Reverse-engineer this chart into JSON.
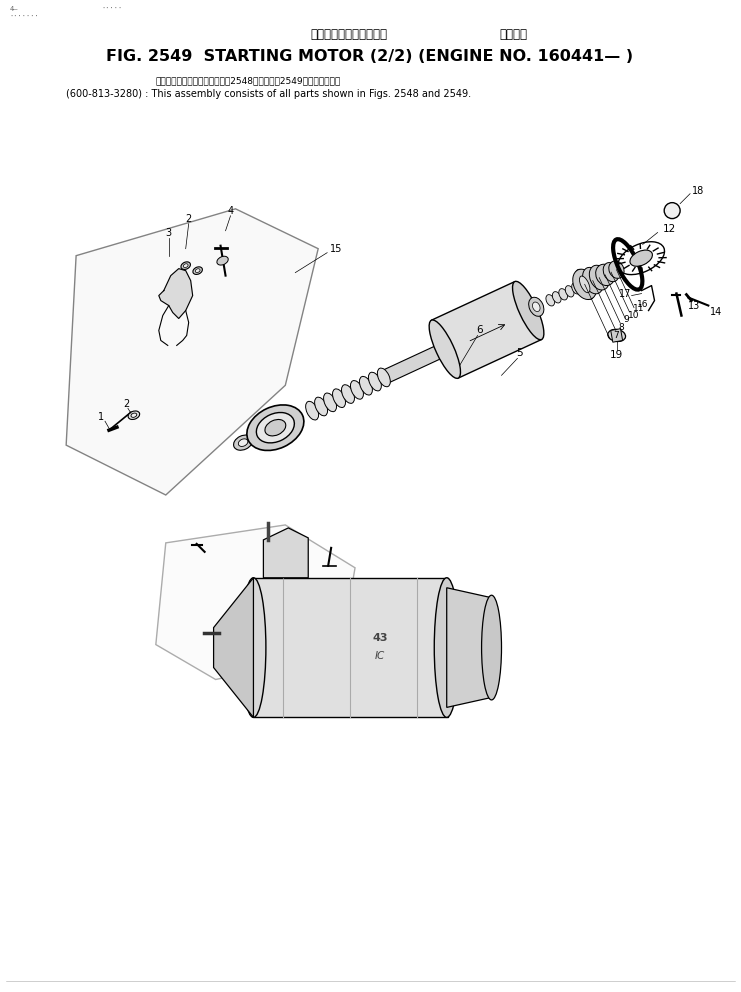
{
  "title_jp": "スターティング　モータ　　適用号機",
  "title_en": "FIG. 2549  STARTING MOTOR (2/2) (ENGINE NO. 160441— )",
  "note_jp": "このアセンブリの構成部品はㅤ2548図およびㅤ2549図を含みます．",
  "note_en": "(600-813-3280) : This assembly consists of all parts shown in Figs. 2548 and 2549.",
  "bg_color": "#ffffff",
  "text_color": "#000000",
  "fig_width": 7.41,
  "fig_height": 9.92,
  "dpi": 100
}
